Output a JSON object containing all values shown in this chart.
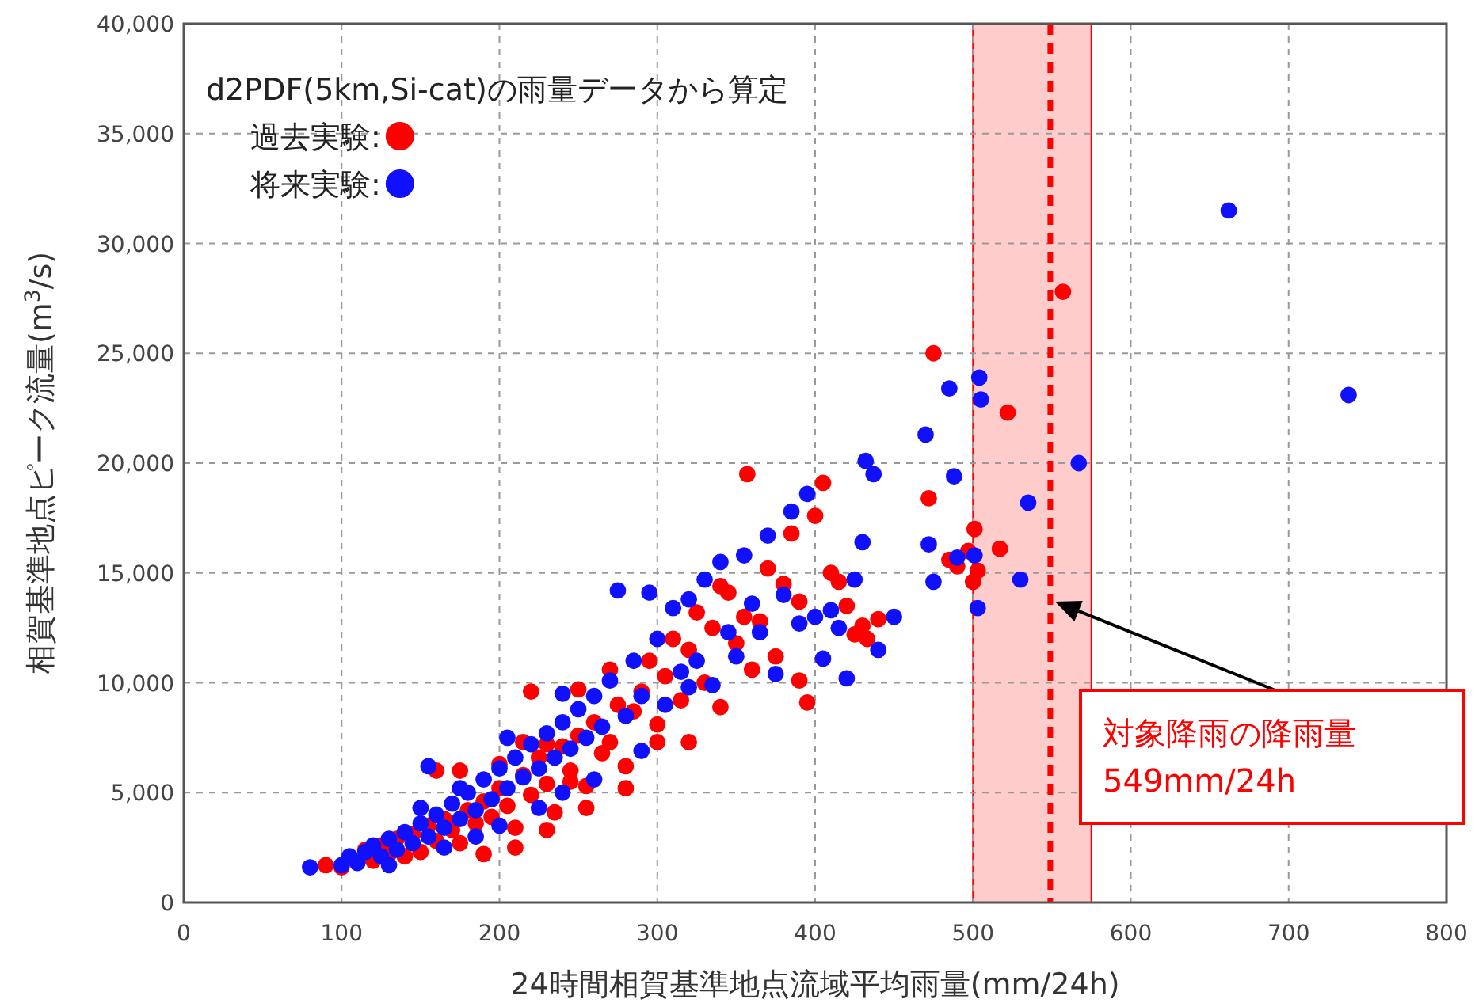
{
  "chart_data": {
    "type": "scatter",
    "xlabel": "24時間相賀基準地点流域平均雨量(mm/24h)",
    "ylabel": "相賀基準地点ピーク流量(m$^{3}$/s)",
    "legend_title": "d2PDF(5km,Si-cat)の雨量データから算定",
    "legend": "top left",
    "grid": true,
    "marker": "circle",
    "xlim": [
      0,
      800
    ],
    "xticks": [
      0,
      100,
      200,
      300,
      400,
      500,
      600,
      700,
      800
    ],
    "ylim": [
      0,
      40000
    ],
    "yticks": [
      0,
      {
        "value": 5000,
        "label": "5,000"
      },
      {
        "value": 10000,
        "label": "10,000"
      },
      {
        "value": 15000,
        "label": "15,000"
      },
      {
        "value": 20000,
        "label": "20,000"
      },
      {
        "value": 25000,
        "label": "25,000"
      },
      {
        "value": 30000,
        "label": "30,000"
      },
      {
        "value": 35000,
        "label": "35,000"
      },
      {
        "value": 40000,
        "label": "40,000"
      }
    ],
    "bands": [
      {
        "axis": "x",
        "from": 500,
        "to": 575,
        "color": "#ffcccc"
      }
    ],
    "ref_lines": [
      {
        "axis": "x",
        "value": 549,
        "color": "#ff0000",
        "line_style": "dashed"
      }
    ],
    "annotations": [
      "対象降雨の降雨量 549mm/24h"
    ],
    "series": [
      {
        "name": "過去実験:",
        "color": "#ff0000",
        "x": [
          90,
          100,
          115,
          120,
          125,
          130,
          135,
          145,
          150,
          155,
          160,
          165,
          170,
          175,
          180,
          185,
          190,
          195,
          200,
          205,
          210,
          215,
          220,
          225,
          230,
          235,
          240,
          245,
          250,
          255,
          260,
          265,
          270,
          275,
          280,
          285,
          290,
          295,
          300,
          305,
          310,
          315,
          320,
          325,
          330,
          335,
          340,
          345,
          350,
          355,
          357,
          360,
          365,
          370,
          375,
          380,
          385,
          390,
          395,
          400,
          405,
          410,
          415,
          420,
          425,
          430,
          433,
          160,
          175,
          200,
          215,
          230,
          250,
          220,
          245,
          140,
          190,
          210,
          230,
          255,
          280,
          300,
          475,
          472,
          485,
          490,
          497,
          500,
          501,
          503,
          517,
          522,
          557,
          270,
          320,
          340,
          390,
          440
        ],
        "values": [
          1700,
          1600,
          2400,
          1900,
          2600,
          2200,
          2900,
          3100,
          2300,
          3500,
          2800,
          3800,
          3300,
          2700,
          4200,
          3600,
          4600,
          3900,
          5200,
          4400,
          3400,
          5800,
          4900,
          6600,
          5400,
          4100,
          7100,
          6000,
          7600,
          5300,
          8200,
          6800,
          7300,
          9000,
          6200,
          8700,
          9600,
          11000,
          8100,
          10300,
          12000,
          9200,
          11500,
          13200,
          10000,
          12500,
          8900,
          14100,
          11800,
          13000,
          19500,
          10600,
          12800,
          15200,
          11200,
          14500,
          16800,
          10100,
          9100,
          17600,
          19100,
          15000,
          14600,
          13500,
          12200,
          12600,
          12000,
          6000,
          6000,
          6300,
          7300,
          7200,
          9700,
          9600,
          5500,
          2100,
          2200,
          2500,
          3300,
          4300,
          5200,
          7300,
          25000,
          18400,
          15600,
          15300,
          16000,
          14600,
          17000,
          15100,
          16100,
          22300,
          27800,
          10600,
          7300,
          14400,
          13700,
          12900
        ]
      },
      {
        "name": "将来実験:",
        "color": "#1010ff",
        "x": [
          80,
          100,
          105,
          110,
          115,
          120,
          125,
          130,
          135,
          140,
          145,
          150,
          155,
          155,
          160,
          165,
          170,
          175,
          180,
          185,
          190,
          195,
          200,
          205,
          210,
          215,
          220,
          225,
          230,
          235,
          240,
          245,
          250,
          255,
          260,
          265,
          270,
          275,
          280,
          285,
          290,
          295,
          300,
          305,
          310,
          315,
          320,
          325,
          330,
          335,
          340,
          345,
          350,
          355,
          360,
          365,
          370,
          375,
          380,
          385,
          390,
          395,
          400,
          405,
          410,
          415,
          420,
          425,
          430,
          432,
          437,
          440,
          450,
          470,
          472,
          475,
          485,
          488,
          490,
          504,
          505,
          501,
          503,
          530,
          535,
          567,
          662,
          738,
          150,
          185,
          225,
          260,
          290,
          320,
          175,
          205,
          240,
          130,
          165,
          200,
          240
        ],
        "values": [
          1600,
          1700,
          2100,
          1800,
          2300,
          2600,
          2100,
          2900,
          2400,
          3200,
          2700,
          3600,
          6200,
          3000,
          4000,
          3400,
          4500,
          3800,
          5000,
          4200,
          5600,
          4700,
          6100,
          5200,
          6600,
          5700,
          7200,
          6100,
          7700,
          6600,
          8200,
          7000,
          8800,
          7500,
          9400,
          8000,
          10100,
          14200,
          8500,
          11000,
          9400,
          14100,
          12000,
          9000,
          13400,
          10500,
          13800,
          11000,
          14700,
          9900,
          15500,
          12300,
          11200,
          15800,
          13600,
          12300,
          16700,
          10400,
          14000,
          17800,
          12700,
          18600,
          13000,
          11100,
          13300,
          12500,
          10200,
          14700,
          16400,
          20100,
          19500,
          11500,
          13000,
          21300,
          16300,
          14600,
          23400,
          19400,
          15700,
          23900,
          22900,
          15800,
          13400,
          14700,
          18200,
          20000,
          31500,
          23100,
          4300,
          3000,
          4300,
          5600,
          6900,
          9800,
          5200,
          7500,
          9500,
          1700,
          2500,
          3500,
          5000
        ]
      }
    ]
  }
}
